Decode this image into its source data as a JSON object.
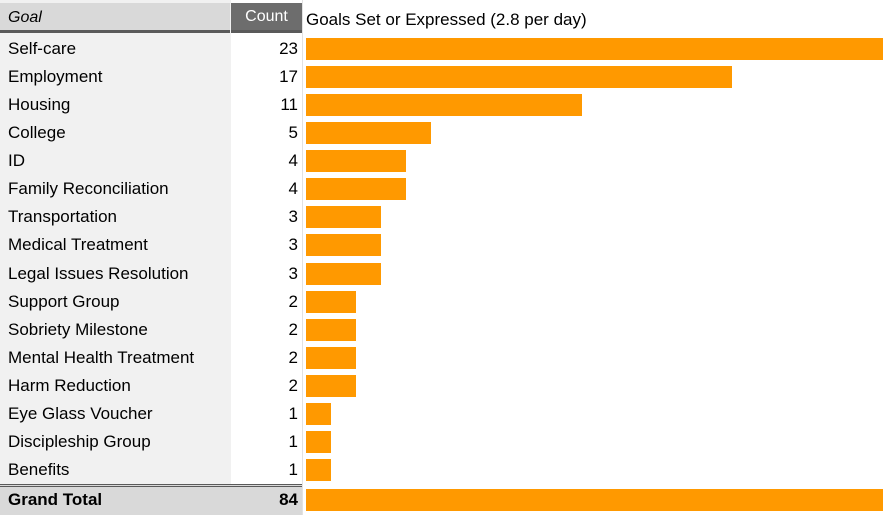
{
  "table": {
    "header_goal": "Goal",
    "header_count": "Count",
    "grand_total_label": "Grand Total",
    "grand_total_value": "84"
  },
  "chart_data": {
    "type": "bar",
    "orientation": "horizontal",
    "title": "Goals Set or Expressed (2.8 per day)",
    "categories": [
      "Self-care",
      "Employment",
      "Housing",
      "College",
      "ID",
      "Family Reconciliation",
      "Transportation",
      "Medical Treatment",
      "Legal Issues Resolution",
      "Support Group",
      "Sobriety Milestone",
      "Mental Health Treatment",
      "Harm Reduction",
      "Eye Glass Voucher",
      "Discipleship Group",
      "Benefits"
    ],
    "values": [
      23,
      17,
      11,
      5,
      4,
      4,
      3,
      3,
      3,
      2,
      2,
      2,
      2,
      1,
      1,
      1
    ],
    "total": 84,
    "bar_color": "#ff9900"
  }
}
